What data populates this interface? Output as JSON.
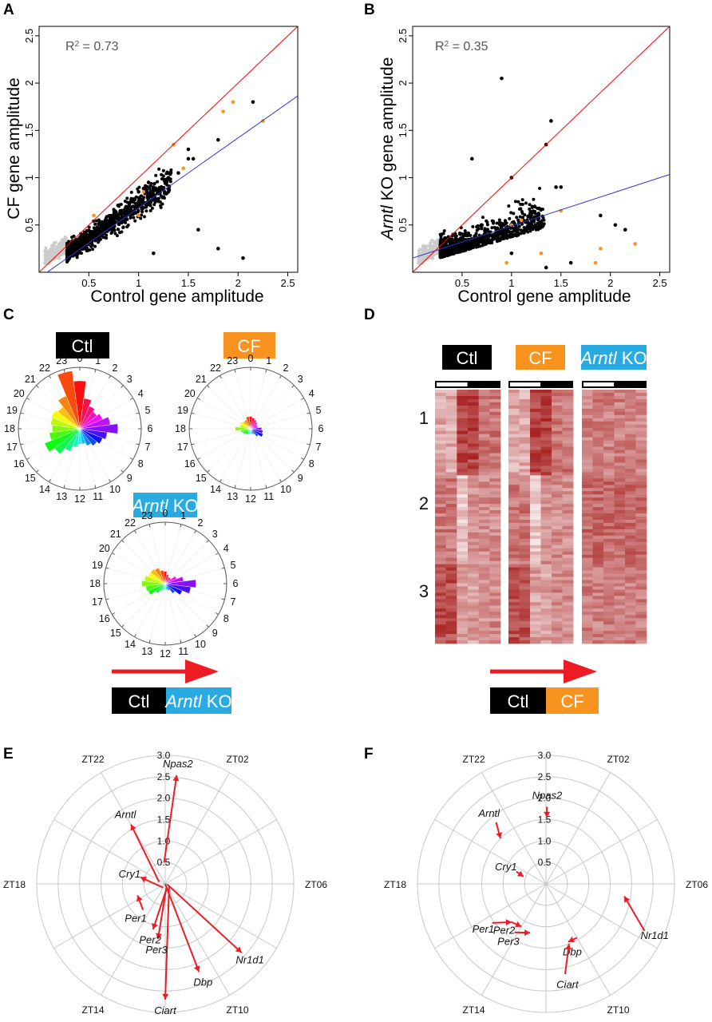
{
  "colors": {
    "black": "#000000",
    "orange": "#f7931e",
    "gray": "#cccccc",
    "identity": "#ff0000",
    "fit": "#3333cc",
    "blue_badge": "#29abe2",
    "arrow": "#ed1c24",
    "heat_high": "#a61c1c",
    "heat_low": "#f6e6e6"
  },
  "panels": {
    "A": "A",
    "B": "B",
    "C": "C",
    "D": "D",
    "E": "E",
    "F": "F"
  },
  "labels": {
    "ctl": "Ctl",
    "cf": "CF",
    "arntl_italic": "Arntl",
    "ko": " KO",
    "scatterA_ylabel": "CF gene amplitude",
    "scatterB_ylabel_italic": "Arntl",
    "scatterB_ylabel_rest": " KO gene amplitude",
    "xlabel": "Control gene amplitude",
    "r2_label": "R",
    "r2_sup": "2",
    "r2A": " = 0.73",
    "r2B": " = 0.35"
  },
  "chart_data": [
    {
      "id": "A",
      "type": "scatter",
      "xlabel": "Control gene amplitude",
      "ylabel": "CF gene amplitude",
      "annotation": "R² = 0.73",
      "xlim": [
        0,
        2.6
      ],
      "ylim": [
        0,
        2.6
      ],
      "xticks": [
        "0.5",
        "1",
        "1.5",
        "2",
        "2.5"
      ],
      "yticks": [
        "0.5",
        "1",
        "1.5",
        "2",
        "2.5"
      ],
      "identity_line": true,
      "fit_line": {
        "slope": 0.74,
        "intercept": -0.06
      },
      "series": [
        {
          "name": "",
          "color": "black",
          "points": [
            [
              0.3,
              0.3
            ],
            [
              0.45,
              0.35
            ],
            [
              0.6,
              0.55
            ],
            [
              0.75,
              0.6
            ],
            [
              0.9,
              0.7
            ],
            [
              1.0,
              0.85
            ],
            [
              1.1,
              0.95
            ],
            [
              1.2,
              0.75
            ],
            [
              1.3,
              1.0
            ],
            [
              1.4,
              1.05
            ],
            [
              1.5,
              1.3
            ],
            [
              1.5,
              1.2
            ],
            [
              1.55,
              1.2
            ],
            [
              1.8,
              1.4
            ],
            [
              1.8,
              0.25
            ],
            [
              2.05,
              0.15
            ],
            [
              2.15,
              1.8
            ],
            [
              1.6,
              0.45
            ],
            [
              1.3,
              0.85
            ],
            [
              1.15,
              0.2
            ]
          ]
        },
        {
          "name": "",
          "color": "orange",
          "points": [
            [
              1.05,
              0.85
            ],
            [
              1.35,
              1.35
            ],
            [
              1.45,
              1.1
            ],
            [
              1.85,
              1.7
            ],
            [
              1.95,
              1.8
            ],
            [
              2.25,
              1.6
            ],
            [
              0.55,
              0.6
            ],
            [
              1.0,
              0.6
            ]
          ]
        },
        {
          "name": "",
          "color": "gray",
          "points": [
            [
              0.1,
              0.1
            ],
            [
              0.15,
              0.2
            ],
            [
              0.2,
              0.15
            ],
            [
              0.25,
              0.25
            ]
          ]
        }
      ]
    },
    {
      "id": "B",
      "type": "scatter",
      "xlabel": "Control gene amplitude",
      "ylabel": "Arntl KO gene amplitude",
      "annotation": "R² = 0.35",
      "xlim": [
        0,
        2.6
      ],
      "ylim": [
        0,
        2.6
      ],
      "xticks": [
        "0.5",
        "1",
        "1.5",
        "2",
        "2.5"
      ],
      "yticks": [
        "0.5",
        "1",
        "1.5",
        "2",
        "2.5"
      ],
      "identity_line": true,
      "fit_line": {
        "slope": 0.34,
        "intercept": 0.15
      },
      "series": [
        {
          "name": "",
          "color": "black",
          "points": [
            [
              0.9,
              2.05
            ],
            [
              1.4,
              1.6
            ],
            [
              1.35,
              1.35
            ],
            [
              0.6,
              1.2
            ],
            [
              1.0,
              1.0
            ],
            [
              1.45,
              0.9
            ],
            [
              1.5,
              0.9
            ],
            [
              1.2,
              0.6
            ],
            [
              1.9,
              0.6
            ],
            [
              2.05,
              0.5
            ],
            [
              2.15,
              0.45
            ],
            [
              1.6,
              0.1
            ],
            [
              1.35,
              0.05
            ],
            [
              1.0,
              0.2
            ],
            [
              0.7,
              0.5
            ]
          ]
        },
        {
          "name": "",
          "color": "orange",
          "points": [
            [
              1.0,
              0.5
            ],
            [
              1.1,
              0.55
            ],
            [
              1.3,
              0.2
            ],
            [
              1.5,
              0.65
            ],
            [
              1.85,
              0.1
            ],
            [
              1.9,
              0.25
            ],
            [
              2.25,
              0.3
            ],
            [
              0.95,
              0.1
            ]
          ]
        },
        {
          "name": "",
          "color": "gray",
          "points": [
            [
              0.1,
              0.1
            ],
            [
              0.15,
              0.2
            ],
            [
              0.2,
              0.15
            ],
            [
              0.25,
              0.25
            ]
          ]
        }
      ]
    },
    {
      "id": "C",
      "type": "polar-histogram",
      "hour_labels": [
        "0",
        "1",
        "2",
        "3",
        "4",
        "5",
        "6",
        "7",
        "8",
        "9",
        "10",
        "11",
        "12",
        "13",
        "14",
        "15",
        "16",
        "17",
        "18",
        "19",
        "20",
        "21",
        "22",
        "23"
      ],
      "series": [
        {
          "name": "Ctl",
          "values": [
            0.78,
            0.5,
            0.4,
            0.35,
            0.4,
            0.5,
            0.62,
            0.45,
            0.4,
            0.35,
            0.3,
            0.25,
            0.25,
            0.3,
            0.4,
            0.52,
            0.62,
            0.5,
            0.45,
            0.48,
            0.5,
            0.45,
            0.58,
            0.95
          ]
        },
        {
          "name": "CF",
          "values": [
            0.2,
            0.18,
            0.16,
            0.14,
            0.12,
            0.12,
            0.18,
            0.2,
            0.22,
            0.16,
            0.1,
            0.08,
            0.08,
            0.08,
            0.1,
            0.12,
            0.14,
            0.16,
            0.25,
            0.18,
            0.18,
            0.16,
            0.16,
            0.2
          ]
        },
        {
          "name": "Arntl KO",
          "values": [
            0.2,
            0.15,
            0.12,
            0.12,
            0.2,
            0.3,
            0.5,
            0.42,
            0.3,
            0.2,
            0.12,
            0.1,
            0.1,
            0.1,
            0.12,
            0.2,
            0.3,
            0.32,
            0.38,
            0.34,
            0.3,
            0.3,
            0.28,
            0.22
          ]
        }
      ]
    },
    {
      "id": "D",
      "type": "heatmap",
      "columns": [
        "Ctl",
        "CF",
        "Arntl KO"
      ],
      "cluster_labels": [
        "1",
        "2",
        "3"
      ]
    },
    {
      "id": "E",
      "type": "polar-vector",
      "rticks": [
        "0.5",
        "1.0",
        "1.5",
        "2.0",
        "2.5",
        "3.0"
      ],
      "zt_labels": [
        "ZT22",
        "ZT02",
        "ZT06",
        "ZT10",
        "ZT14",
        "ZT18"
      ],
      "arrows": [
        {
          "gene": "Npas2",
          "from": [
            0.5,
            23.8
          ],
          "to": [
            2.55,
            0.4
          ]
        },
        {
          "gene": "Arntl",
          "from": [
            0.15,
            19.2
          ],
          "to": [
            1.6,
            22.0
          ]
        },
        {
          "gene": "Cry1",
          "from": [
            0.1,
            14.0
          ],
          "to": [
            0.6,
            19.0
          ]
        },
        {
          "gene": "Nr1d1",
          "from": [
            0.05,
            7.0
          ],
          "to": [
            2.4,
            8.8
          ]
        },
        {
          "gene": "Dbp",
          "from": [
            0.0,
            6.0
          ],
          "to": [
            2.2,
            10.6
          ]
        },
        {
          "gene": "Ciart",
          "from": [
            0.1,
            7.5
          ],
          "to": [
            2.7,
            12.0
          ]
        },
        {
          "gene": "Per3",
          "from": [
            0.1,
            11.0
          ],
          "to": [
            1.3,
            12.5
          ]
        },
        {
          "gene": "Per2",
          "from": [
            0.1,
            10.5
          ],
          "to": [
            1.1,
            13.0
          ]
        },
        {
          "gene": "Per1",
          "from": [
            0.8,
            14.7
          ],
          "to": [
            0.7,
            16.5
          ]
        }
      ]
    },
    {
      "id": "F",
      "type": "polar-vector",
      "rticks": [
        "0.5",
        "1.0",
        "1.5",
        "2.0",
        "2.5",
        "3.0"
      ],
      "zt_labels": [
        "ZT22",
        "ZT02",
        "ZT06",
        "ZT10",
        "ZT14",
        "ZT18"
      ],
      "arrows": [
        {
          "gene": "Npas2",
          "from": [
            1.8,
            0.05
          ],
          "to": [
            1.55,
            0.05
          ]
        },
        {
          "gene": "Arntl",
          "from": [
            1.85,
            21.4
          ],
          "to": [
            1.5,
            21.0
          ]
        },
        {
          "gene": "Cry1",
          "from": [
            0.75,
            19.5
          ],
          "to": [
            0.55,
            19.2
          ]
        },
        {
          "gene": "Nr1d1",
          "from": [
            2.55,
            7.7
          ],
          "to": [
            1.85,
            6.6
          ]
        },
        {
          "gene": "Dbp",
          "from": [
            1.45,
            10.0
          ],
          "to": [
            1.45,
            10.6
          ]
        },
        {
          "gene": "Ciart",
          "from": [
            2.15,
            11.2
          ],
          "to": [
            1.5,
            10.6
          ]
        },
        {
          "gene": "Per3",
          "from": [
            1.35,
            14.2
          ],
          "to": [
            1.2,
            13.2
          ]
        },
        {
          "gene": "Per2",
          "from": [
            1.2,
            14.8
          ],
          "to": [
            1.15,
            14.0
          ]
        },
        {
          "gene": "Per1",
          "from": [
            1.55,
            15.6
          ],
          "to": [
            1.2,
            14.8
          ]
        }
      ]
    }
  ]
}
